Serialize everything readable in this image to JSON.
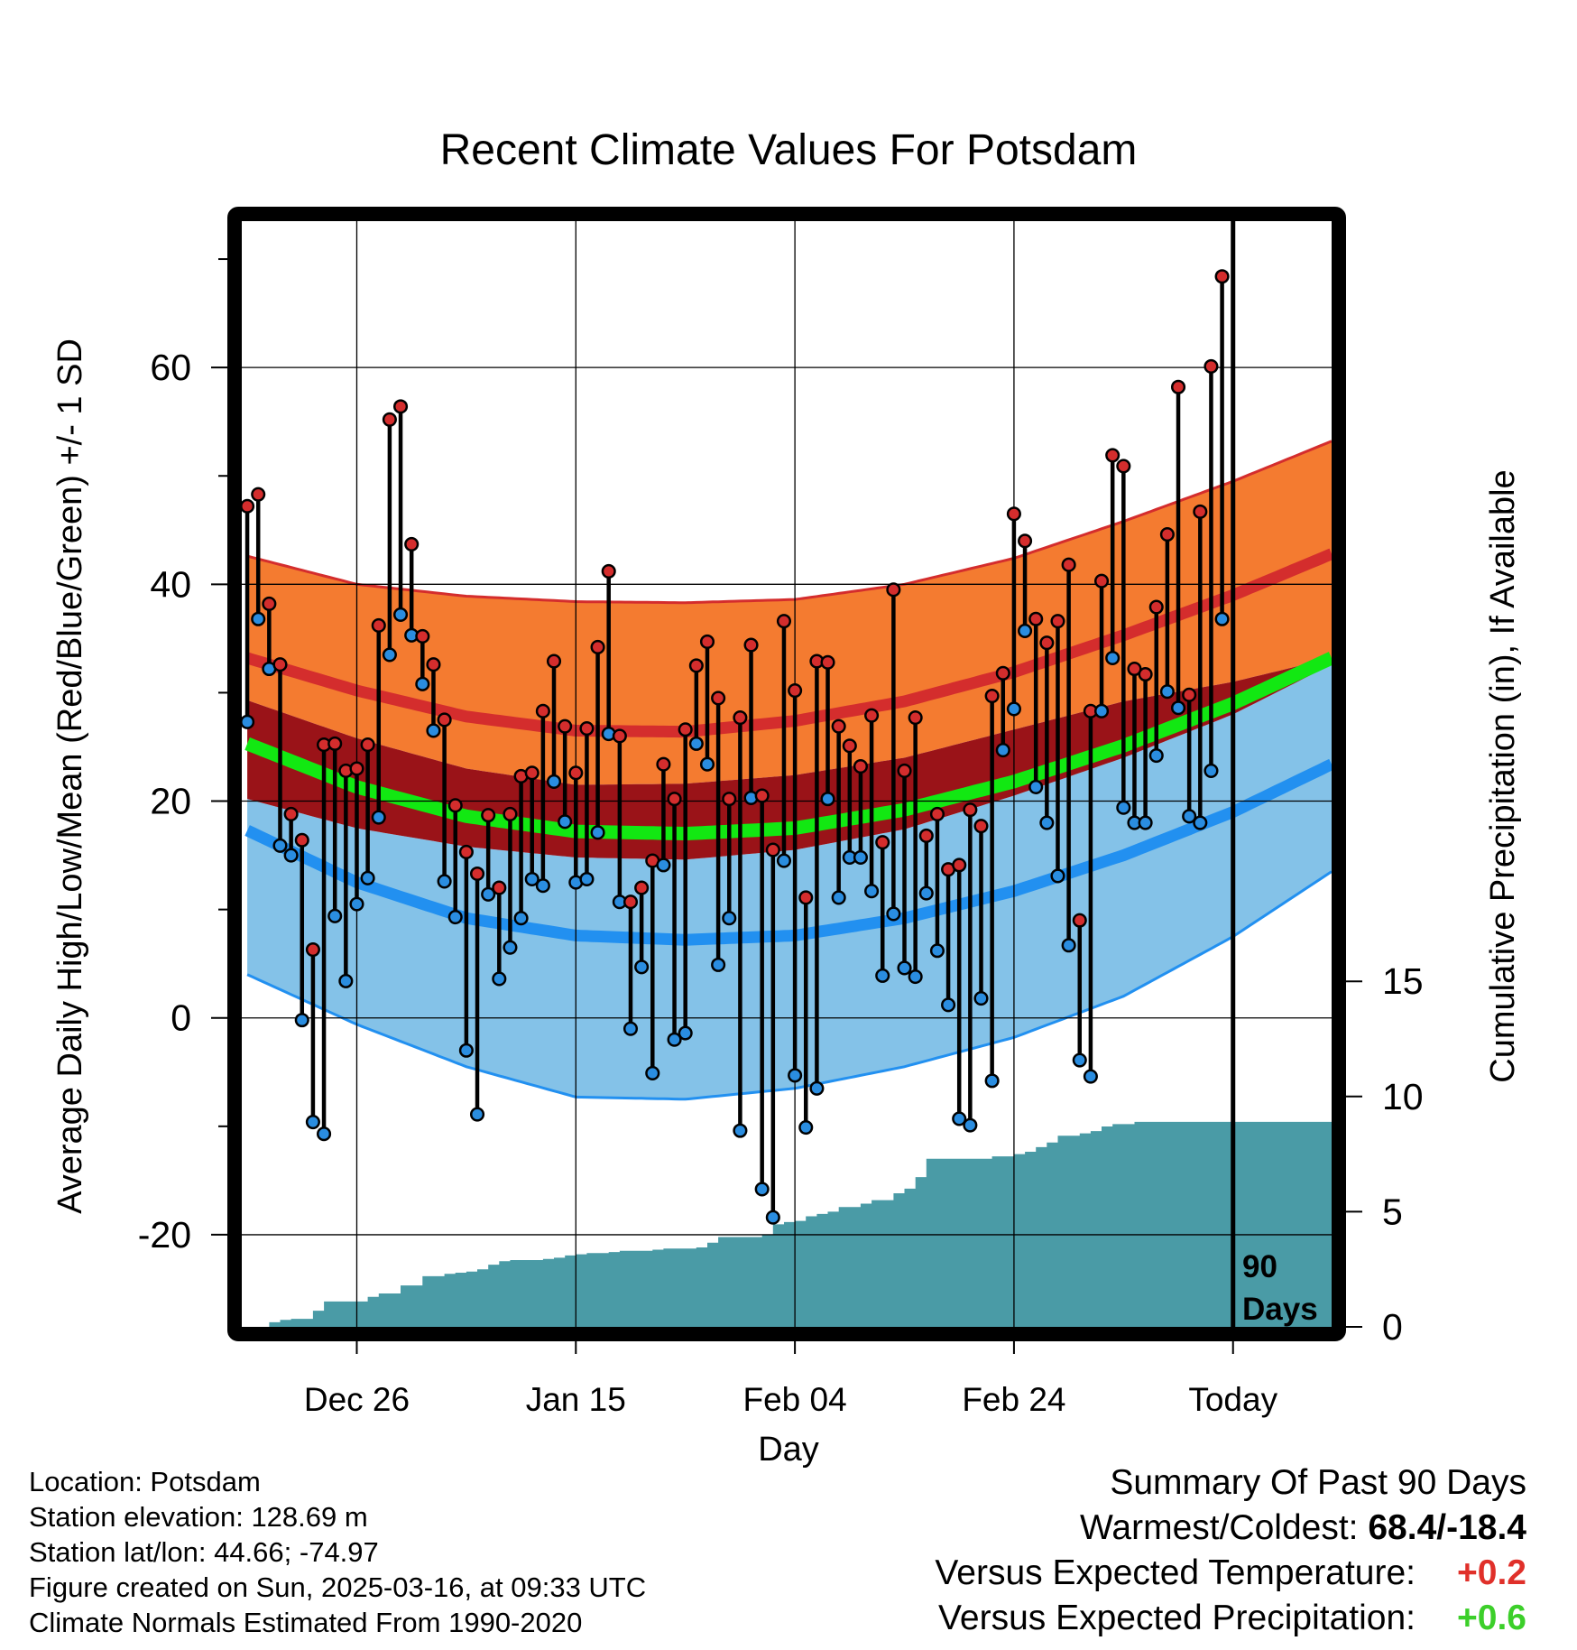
{
  "chart_data": {
    "type": "line",
    "title": "Recent Climate Values For Potsdam",
    "xlabel": "Day",
    "ylabel_left": "Average Daily High/Low/Mean (Red/Blue/Green) +/- 1 SD",
    "ylabel_right": "Cumulative Precipitation (in), If Available",
    "x_ticks": [
      {
        "day": 10,
        "label": "Dec 26"
      },
      {
        "day": 30,
        "label": "Jan 15"
      },
      {
        "day": 50,
        "label": "Feb 04"
      },
      {
        "day": 70,
        "label": "Feb 24"
      },
      {
        "day": 90,
        "label": "Today"
      }
    ],
    "y_ticks_left": [
      -20,
      0,
      20,
      40,
      60
    ],
    "ylim_left": [
      -28.5,
      73.5
    ],
    "y_ticks_right": [
      0,
      5,
      10,
      15
    ],
    "ylim_right": [
      0,
      48
    ],
    "xlim": [
      -0.5,
      99
    ],
    "today_marker": {
      "day": 90,
      "label_line1": "90",
      "label_line2": "Days"
    },
    "normals": {
      "days": [
        0,
        10,
        20,
        30,
        40,
        50,
        60,
        70,
        80,
        90,
        99
      ],
      "high_mean": [
        33.2,
        30.2,
        27.8,
        26.5,
        26.4,
        27.4,
        29.2,
        31.9,
        35.3,
        39.0,
        42.8
      ],
      "high_upper": [
        42.6,
        40.0,
        38.9,
        38.4,
        38.3,
        38.6,
        40.0,
        42.4,
        45.8,
        49.5,
        53.2
      ],
      "high_lower": [
        29.3,
        25.8,
        23.0,
        21.5,
        21.6,
        22.4,
        24.0,
        26.6,
        29.2,
        31.0,
        33.2
      ],
      "low_mean": [
        17.3,
        12.5,
        9.2,
        7.6,
        7.2,
        7.6,
        9.2,
        11.7,
        15.0,
        19.0,
        23.4
      ],
      "low_upper": [
        20.2,
        17.5,
        15.8,
        14.8,
        14.6,
        15.5,
        17.4,
        20.5,
        24.0,
        28.0,
        32.6
      ],
      "low_lower": [
        4.0,
        -0.6,
        -4.5,
        -7.3,
        -7.5,
        -6.5,
        -4.5,
        -1.8,
        2.0,
        7.5,
        13.5
      ],
      "mean_mean": [
        25.3,
        21.3,
        18.6,
        17.2,
        17.0,
        17.5,
        19.2,
        21.8,
        25.1,
        29.0,
        33.2
      ]
    },
    "series": [
      {
        "name": "High",
        "color": "#d42d2d",
        "values": [
          47.2,
          48.3,
          38.2,
          32.6,
          18.8,
          16.4,
          6.3,
          25.2,
          25.3,
          22.8,
          23.0,
          25.2,
          36.2,
          55.2,
          56.4,
          43.7,
          35.2,
          32.6,
          27.5,
          19.6,
          15.3,
          13.3,
          18.7,
          12.0,
          18.8,
          22.3,
          22.6,
          28.3,
          32.9,
          26.9,
          22.6,
          26.7,
          34.2,
          41.2,
          26.0,
          10.7,
          12.0,
          14.5,
          23.4,
          20.2,
          26.6,
          32.5,
          34.7,
          29.5,
          20.2,
          27.7,
          34.4,
          20.5,
          15.5,
          36.6,
          30.2,
          11.1,
          32.9,
          32.8,
          26.9,
          25.1,
          23.2,
          27.9,
          16.2,
          39.5,
          22.8,
          27.7,
          16.8,
          18.8,
          13.7,
          14.1,
          19.2,
          17.7,
          29.7,
          31.8,
          46.5,
          44.0,
          36.8,
          34.6,
          36.6,
          41.8,
          9.0,
          28.3,
          40.3,
          51.9,
          50.9,
          32.2,
          31.7,
          37.9,
          44.6,
          58.2,
          29.8,
          46.7,
          60.1,
          68.4
        ]
      },
      {
        "name": "Low",
        "color": "#2a8de0",
        "values": [
          27.3,
          36.8,
          32.2,
          15.9,
          15.0,
          -0.2,
          -9.6,
          -10.7,
          9.4,
          3.4,
          10.5,
          12.9,
          18.5,
          33.5,
          37.2,
          35.3,
          30.8,
          26.5,
          12.6,
          9.3,
          -3.0,
          -8.9,
          11.4,
          3.6,
          6.5,
          9.2,
          12.8,
          12.2,
          21.8,
          18.1,
          12.5,
          12.8,
          17.1,
          26.2,
          10.7,
          -1.0,
          4.7,
          -5.1,
          14.1,
          -2.0,
          -1.4,
          25.3,
          23.4,
          4.9,
          9.2,
          -10.4,
          20.3,
          -15.8,
          -18.4,
          14.5,
          -5.3,
          -10.1,
          -6.5,
          20.2,
          11.1,
          14.8,
          14.8,
          11.7,
          3.9,
          9.6,
          4.6,
          3.8,
          11.5,
          6.2,
          1.2,
          -9.3,
          -9.9,
          1.8,
          -5.8,
          24.7,
          28.5,
          35.7,
          21.3,
          18.0,
          13.1,
          6.7,
          -3.9,
          -5.4,
          28.3,
          33.2,
          19.4,
          18.0,
          18.0,
          24.2,
          30.1,
          28.6,
          18.6,
          18.0,
          22.8,
          36.8
        ]
      }
    ],
    "cumulative_precip": {
      "days": [
        0,
        1,
        2,
        3,
        4,
        5,
        6,
        7,
        8,
        9,
        10,
        11,
        12,
        13,
        14,
        15,
        16,
        17,
        18,
        19,
        20,
        21,
        22,
        23,
        24,
        25,
        26,
        27,
        28,
        29,
        30,
        31,
        32,
        33,
        34,
        35,
        36,
        37,
        38,
        39,
        40,
        41,
        42,
        43,
        44,
        45,
        46,
        47,
        48,
        49,
        50,
        51,
        52,
        53,
        54,
        55,
        56,
        57,
        58,
        59,
        60,
        61,
        62,
        63,
        64,
        65,
        66,
        67,
        68,
        69,
        70,
        71,
        72,
        73,
        74,
        75,
        76,
        77,
        78,
        79,
        80,
        81,
        82,
        83,
        84,
        85,
        86,
        87,
        88,
        89,
        90,
        91,
        92,
        93,
        94,
        95,
        96,
        97,
        98,
        99
      ],
      "values": [
        0,
        0,
        0.2,
        0.3,
        0.35,
        0.35,
        0.7,
        1.1,
        1.1,
        1.1,
        1.1,
        1.3,
        1.45,
        1.45,
        1.8,
        1.8,
        2.2,
        2.2,
        2.3,
        2.35,
        2.4,
        2.5,
        2.7,
        2.85,
        2.9,
        2.9,
        2.9,
        2.95,
        3.0,
        3.1,
        3.15,
        3.2,
        3.2,
        3.25,
        3.3,
        3.3,
        3.3,
        3.35,
        3.4,
        3.4,
        3.4,
        3.45,
        3.65,
        3.9,
        3.9,
        3.9,
        3.9,
        4.0,
        4.45,
        4.55,
        4.6,
        4.8,
        4.9,
        5.0,
        5.2,
        5.2,
        5.35,
        5.5,
        5.5,
        5.8,
        6.0,
        6.5,
        7.3,
        7.3,
        7.3,
        7.3,
        7.3,
        7.3,
        7.4,
        7.4,
        7.5,
        7.6,
        7.8,
        8.0,
        8.3,
        8.3,
        8.4,
        8.5,
        8.7,
        8.8,
        8.8,
        8.9,
        8.9,
        8.9,
        8.9,
        8.9,
        8.9,
        8.9,
        8.9,
        8.9,
        8.9,
        8.9,
        8.9,
        8.9,
        8.9,
        8.9,
        8.9,
        8.9,
        8.9,
        8.9
      ]
    },
    "colors": {
      "high_band": "#f47b30",
      "high_line": "#d42d2d",
      "mean_band": "#9a1318",
      "mean_line": "#12e812",
      "low_band": "#84c2e8",
      "low_line": "#2290f0",
      "precip": "#4a9ba6",
      "marker_high": "#d42d2d",
      "marker_low": "#2a8de0"
    },
    "grid": true
  },
  "footer": {
    "location": "Location: Potsdam",
    "elevation": "Station elevation: 128.69 m",
    "latlon": "Station lat/lon: 44.66; -74.97",
    "created": "Figure created on Sun, 2025-03-16, at 09:33 UTC",
    "normals": "Climate Normals Estimated From 1990-2020"
  },
  "summary": {
    "heading": "Summary Of Past 90 Days",
    "warmest_label": "Warmest/Coldest:",
    "warmest_value": "68.4/-18.4",
    "temp_label": "Versus Expected Temperature:",
    "temp_value": "+0.2",
    "precip_label": "Versus Expected Precipitation:",
    "precip_value": "+0.6"
  }
}
